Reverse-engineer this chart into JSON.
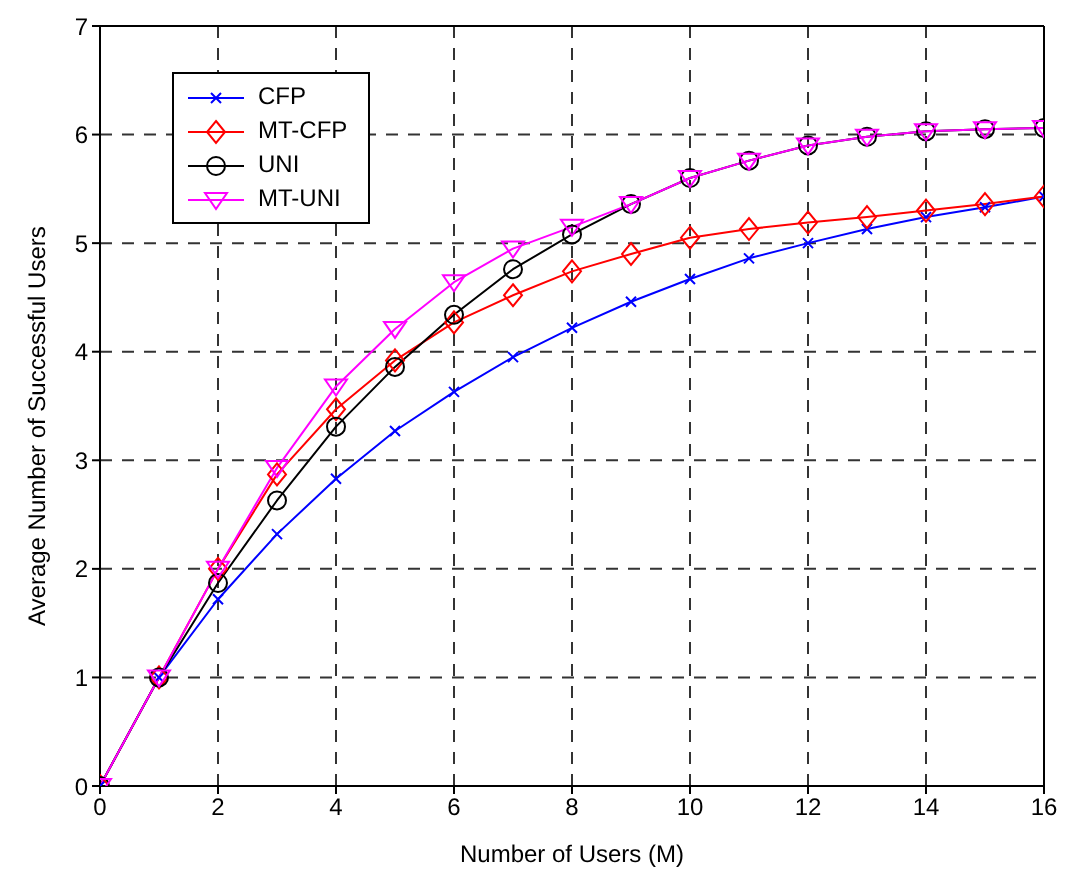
{
  "chart_data": {
    "type": "line",
    "xlabel": "Number of Users (M)",
    "ylabel": "Average Number of Successful Users",
    "x": [
      0,
      1,
      2,
      3,
      4,
      5,
      6,
      7,
      8,
      9,
      10,
      11,
      12,
      13,
      14,
      15,
      16
    ],
    "series": [
      {
        "name": "CFP",
        "color": "#0000ff",
        "marker": "cross",
        "values": [
          0,
          1,
          1.72,
          2.32,
          2.83,
          3.27,
          3.63,
          3.95,
          4.22,
          4.46,
          4.67,
          4.86,
          5.0,
          5.13,
          5.24,
          5.33,
          5.43
        ]
      },
      {
        "name": "MT-CFP",
        "color": "#ff0000",
        "marker": "diamond",
        "values": [
          0,
          1,
          2.0,
          2.87,
          3.47,
          3.92,
          4.27,
          4.52,
          4.74,
          4.9,
          5.05,
          5.13,
          5.19,
          5.24,
          5.3,
          5.36,
          5.43
        ]
      },
      {
        "name": "UNI",
        "color": "#000000",
        "marker": "circle",
        "values": [
          0,
          1,
          1.87,
          2.63,
          3.31,
          3.86,
          4.34,
          4.76,
          5.08,
          5.36,
          5.6,
          5.76,
          5.9,
          5.98,
          6.03,
          6.05,
          6.06
        ]
      },
      {
        "name": "MT-UNI",
        "color": "#ff00ff",
        "marker": "triangle",
        "values": [
          0,
          1,
          2.0,
          2.93,
          3.68,
          4.21,
          4.64,
          4.95,
          5.15,
          5.36,
          5.6,
          5.76,
          5.9,
          5.98,
          6.03,
          6.05,
          6.06
        ]
      }
    ],
    "xlim": [
      0,
      16
    ],
    "xticks": [
      0,
      2,
      4,
      6,
      8,
      10,
      12,
      14,
      16
    ],
    "ylim": [
      0,
      7
    ],
    "yticks": [
      0,
      1,
      2,
      3,
      4,
      5,
      6,
      7
    ],
    "grid": true,
    "legend": "top left",
    "line_style": "solid"
  }
}
